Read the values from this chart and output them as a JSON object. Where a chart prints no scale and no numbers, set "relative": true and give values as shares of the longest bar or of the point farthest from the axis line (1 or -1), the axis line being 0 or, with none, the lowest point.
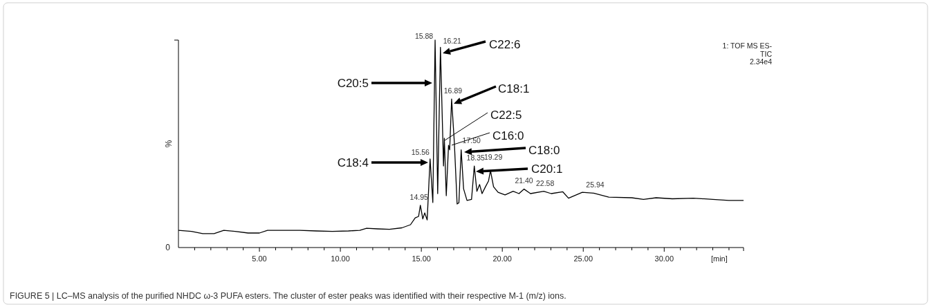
{
  "chart_data": {
    "type": "line",
    "relative": true,
    "xlabel": "[min]",
    "ylabel": "%",
    "color": "#000000",
    "xlim": [
      0,
      34.9
    ],
    "xticks": [
      {
        "value": 1,
        "label": null
      },
      {
        "value": 2,
        "label": null
      },
      {
        "value": 3,
        "label": null
      },
      {
        "value": 4,
        "label": null
      },
      {
        "value": 5,
        "label": "5.00"
      },
      {
        "value": 6,
        "label": null
      },
      {
        "value": 7,
        "label": null
      },
      {
        "value": 8,
        "label": null
      },
      {
        "value": 9,
        "label": null
      },
      {
        "value": 10,
        "label": "10.00"
      },
      {
        "value": 11,
        "label": null
      },
      {
        "value": 12,
        "label": null
      },
      {
        "value": 13,
        "label": null
      },
      {
        "value": 14,
        "label": null
      },
      {
        "value": 15,
        "label": "15.00"
      },
      {
        "value": 16,
        "label": null
      },
      {
        "value": 17,
        "label": null
      },
      {
        "value": 18,
        "label": null
      },
      {
        "value": 19,
        "label": null
      },
      {
        "value": 20,
        "label": "20.00"
      },
      {
        "value": 21,
        "label": null
      },
      {
        "value": 22,
        "label": null
      },
      {
        "value": 23,
        "label": null
      },
      {
        "value": 24,
        "label": null
      },
      {
        "value": 25,
        "label": "25.00"
      },
      {
        "value": 26,
        "label": null
      },
      {
        "value": 27,
        "label": null
      },
      {
        "value": 28,
        "label": null
      },
      {
        "value": 29,
        "label": null
      },
      {
        "value": 30,
        "label": "30.00"
      },
      {
        "value": 31,
        "label": null
      },
      {
        "value": 32,
        "label": null
      },
      {
        "value": 33,
        "label": null
      },
      {
        "value": 34,
        "label": null
      }
    ],
    "x": [
      0,
      0.8,
      1.5,
      2.2,
      2.8,
      3.5,
      4.3,
      5.0,
      5.5,
      6.5,
      7.5,
      8.5,
      9.5,
      10.5,
      11.2,
      11.62,
      12.3,
      13.03,
      13.8,
      14.33,
      14.62,
      14.83,
      14.94,
      15.09,
      15.21,
      15.36,
      15.54,
      15.71,
      15.85,
      16.01,
      16.18,
      16.37,
      16.42,
      16.54,
      16.68,
      16.75,
      16.87,
      17.04,
      17.21,
      17.32,
      17.46,
      17.61,
      17.82,
      18.1,
      18.27,
      18.43,
      18.6,
      18.75,
      18.96,
      19.15,
      19.27,
      19.46,
      19.74,
      20.17,
      20.67,
      21.03,
      21.34,
      21.74,
      22.56,
      23.02,
      23.73,
      24.09,
      24.94,
      25.65,
      26.58,
      28.0,
      28.72,
      29.5,
      30.5,
      31.8,
      33.0,
      34.0,
      34.9
    ],
    "values": [
      0.083,
      0.078,
      0.067,
      0.067,
      0.083,
      0.078,
      0.07,
      0.07,
      0.083,
      0.083,
      0.083,
      0.08,
      0.078,
      0.08,
      0.083,
      0.093,
      0.09,
      0.088,
      0.095,
      0.11,
      0.143,
      0.15,
      0.204,
      0.138,
      0.167,
      0.133,
      0.427,
      0.217,
      1.0,
      0.26,
      0.965,
      0.393,
      0.527,
      0.25,
      0.493,
      0.471,
      0.716,
      0.504,
      0.21,
      0.216,
      0.471,
      0.283,
      0.227,
      0.232,
      0.393,
      0.271,
      0.304,
      0.26,
      0.293,
      0.321,
      0.371,
      0.293,
      0.266,
      0.254,
      0.271,
      0.26,
      0.282,
      0.26,
      0.271,
      0.26,
      0.269,
      0.238,
      0.266,
      0.262,
      0.243,
      0.24,
      0.232,
      0.24,
      0.235,
      0.238,
      0.232,
      0.227,
      0.227
    ],
    "annotations": [
      "0",
      {
        "text": "14.95",
        "x": 14.94,
        "y": 0.204
      },
      {
        "text": "15.56",
        "x": 15.54,
        "y": 0.427
      },
      {
        "text": "15.88",
        "x": 15.85,
        "y": 1.0
      },
      {
        "text": "16.21",
        "x": 16.18,
        "y": 0.965
      },
      {
        "text": "16.89",
        "x": 16.87,
        "y": 0.716
      },
      {
        "text": "17.50",
        "x": 17.46,
        "y": 0.471
      },
      {
        "text": "18.35",
        "x": 18.27,
        "y": 0.393
      },
      {
        "text": "19.29",
        "x": 19.27,
        "y": 0.371
      },
      {
        "text": "21.40",
        "x": 21.34,
        "y": 0.282
      },
      {
        "text": "22.58",
        "x": 22.56,
        "y": 0.271
      },
      {
        "text": "25.94",
        "x": 25.65,
        "y": 0.262
      },
      "C20:5",
      "C18:4",
      "C22:6",
      "C18:1",
      "C22:5",
      "C16:0",
      "C18:0",
      "C20:1",
      "1: TOF MS ES-",
      "TIC",
      "2.34e4",
      "FIGURE 5 | LC–MS analysis of the purified NHDC ω-3 PUFA esters. The cluster of ester peaks was identified with their respective M-1 (m/z) ions."
    ]
  }
}
